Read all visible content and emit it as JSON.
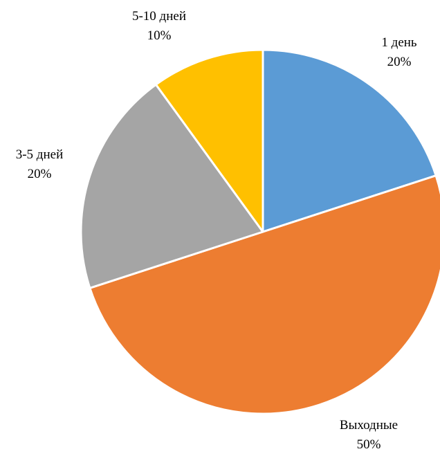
{
  "chart_data": {
    "type": "pie",
    "start_angle_deg": 0,
    "direction": "clockwise",
    "slices": [
      {
        "label": "1 день",
        "value": 20,
        "value_label": "20%",
        "color": "#5B9BD5"
      },
      {
        "label": "Выходные",
        "value": 50,
        "value_label": "50%",
        "color": "#ED7D31"
      },
      {
        "label": "3-5 дней",
        "value": 20,
        "value_label": "20%",
        "color": "#A5A5A5"
      },
      {
        "label": "5-10 дней",
        "value": 10,
        "value_label": "10%",
        "color": "#FFC000"
      }
    ],
    "slice_border_color": "#FFFFFF",
    "legend": "none"
  }
}
